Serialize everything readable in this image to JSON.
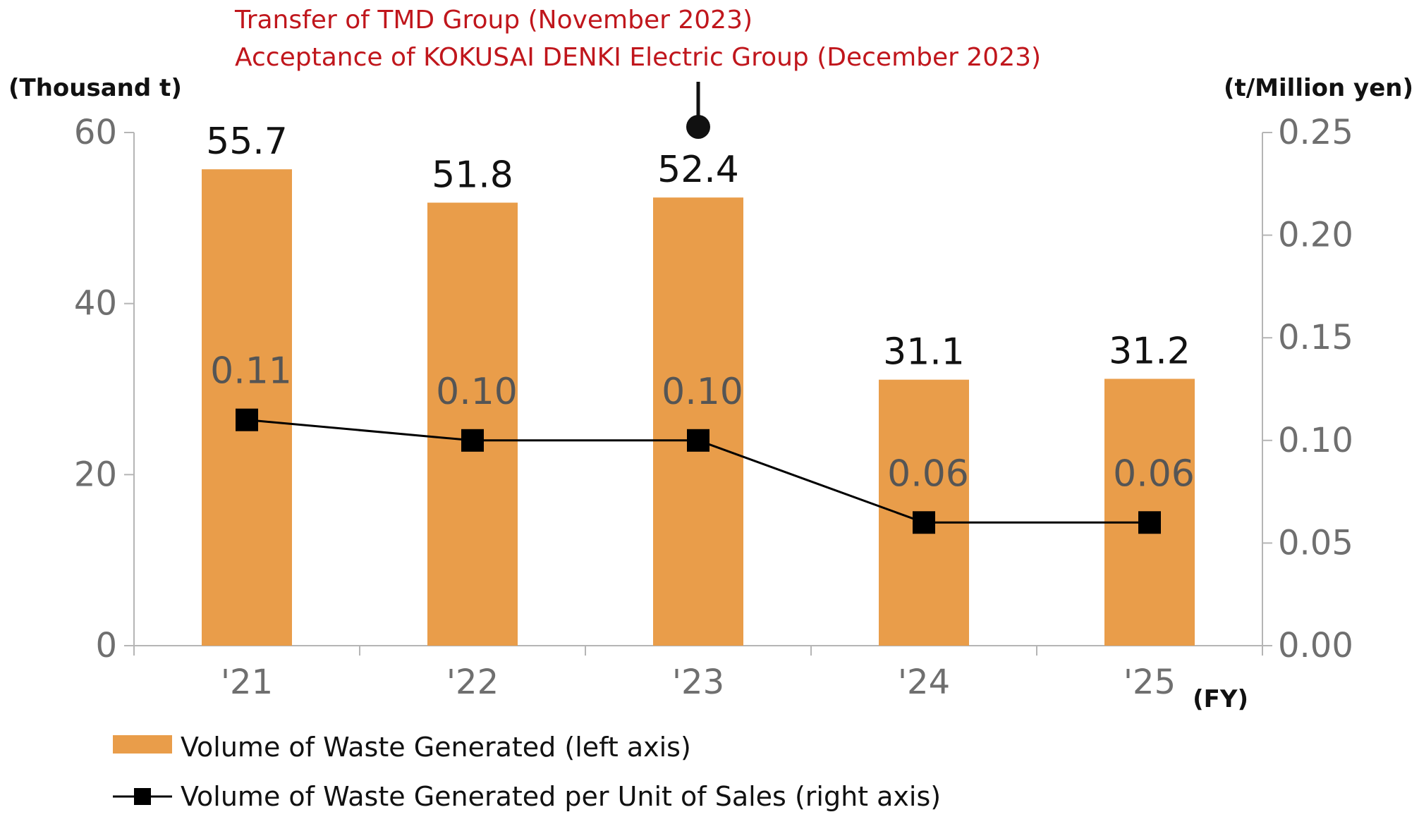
{
  "annotation": {
    "line1": "Transfer of TMD Group (November 2023)",
    "line2": "Acceptance of KOKUSAI DENKI Electric Group (December 2023)",
    "category": "'23"
  },
  "chart_data": {
    "type": "bar",
    "categories": [
      "'21",
      "'22",
      "'23",
      "'24",
      "'25"
    ],
    "x_unit": "(FY)",
    "left_axis": {
      "unit": "(Thousand t)",
      "range": [
        0,
        60
      ],
      "ticks": [
        "0",
        "20",
        "40",
        "60"
      ]
    },
    "right_axis": {
      "unit": "(t/Million yen)",
      "range": [
        0,
        0.25
      ],
      "ticks": [
        "0.00",
        "0.05",
        "0.10",
        "0.15",
        "0.20",
        "0.25"
      ]
    },
    "series": [
      {
        "name": "Volume of Waste Generated (left axis)",
        "type": "bar",
        "axis": "left",
        "color": "#e99d4a",
        "values": [
          55.7,
          51.8,
          52.4,
          31.1,
          31.2
        ],
        "labels": [
          "55.7",
          "51.8",
          "52.4",
          "31.1",
          "31.2"
        ]
      },
      {
        "name": "Volume of Waste Generated per Unit of Sales (right axis)",
        "type": "line",
        "axis": "right",
        "color": "#000000",
        "values": [
          0.11,
          0.1,
          0.1,
          0.06,
          0.06
        ],
        "labels": [
          "0.11",
          "0.10",
          "0.10",
          "0.06",
          "0.06"
        ]
      }
    ],
    "grid": false,
    "legend_position": "bottom-left"
  }
}
